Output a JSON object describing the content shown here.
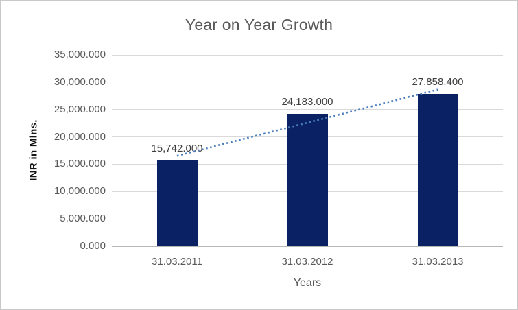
{
  "chart_data": {
    "type": "bar",
    "title": "Year on Year Growth",
    "xlabel": "Years",
    "ylabel": "INR in Mlns.",
    "categories": [
      "31.03.2011",
      "31.03.2012",
      "31.03.2013"
    ],
    "values": [
      15742.0,
      24183.0,
      27858.4
    ],
    "data_labels": [
      "15,742.000",
      "24,183.000",
      "27,858.400"
    ],
    "y_ticks": [
      {
        "value": 0,
        "label": "0.000"
      },
      {
        "value": 5000,
        "label": "5,000.000"
      },
      {
        "value": 10000,
        "label": "10,000.000"
      },
      {
        "value": 15000,
        "label": "15,000.000"
      },
      {
        "value": 20000,
        "label": "20,000.000"
      },
      {
        "value": 25000,
        "label": "25,000.000"
      },
      {
        "value": 30000,
        "label": "30,000.000"
      },
      {
        "value": 35000,
        "label": "35,000.000"
      }
    ],
    "ylim": [
      0,
      35000
    ],
    "grid": "horizontal",
    "legend_position": "none",
    "trendline": {
      "type": "linear",
      "style": "dotted"
    }
  },
  "colors": {
    "bar": "#0a2263",
    "trendline": "#4a7ebc",
    "gridline": "#d9d9d9",
    "axis_line": "#b7b7b7",
    "title_text": "#595959",
    "tick_text": "#595959",
    "data_label_text": "#3f3f3f",
    "axis_title_text": "#141414",
    "frame_border": "#c9c9c9",
    "background": "#ffffff"
  }
}
